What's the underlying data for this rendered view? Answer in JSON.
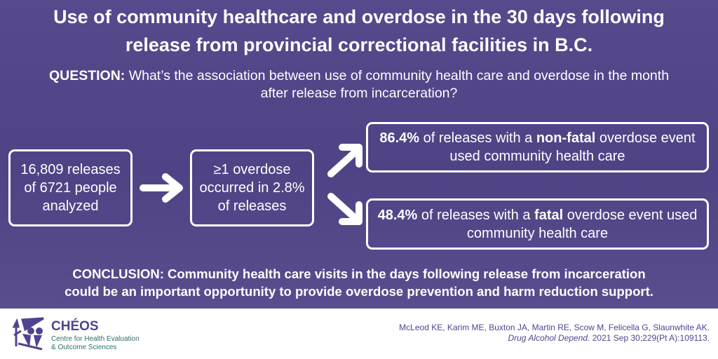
{
  "title": {
    "line1": "Use of community healthcare and overdose in the 30 days following",
    "line2": "release from provincial correctional facilities in B.C."
  },
  "question": {
    "label": "QUESTION:",
    "text": "What’s the association between use of community health care and overdose in the month after release from incarceration?"
  },
  "flow": {
    "box1": "16,809 releases of 6721 people analyzed",
    "box2": "≥1 overdose occurred in 2.8% of releases",
    "box3": {
      "pct": "86.4%",
      "a": " of releases with a ",
      "b": "non-fatal",
      "c": " overdose event used community health care"
    },
    "box4": {
      "pct": "48.4%",
      "a": " of releases with a ",
      "b": "fatal",
      "c": " overdose event used community health care"
    }
  },
  "conclusion": {
    "line1": "CONCLUSION: Community health care visits in the days following release from incarceration",
    "line2": "could be an important opportunity to provide overdose prevention and harm reduction support."
  },
  "footer": {
    "logo_name": "CHÉOS",
    "logo_sub1": "Centre for Health Evaluation",
    "logo_sub2": "& Outcome Sciences",
    "citation_authors": "McLeod KE, Karim ME, Buxton JA, Martin RE, Scow M, Felicella G, Slaunwhite AK.",
    "citation_journal": "Drug Alcohol Depend.",
    "citation_details": " 2021 Sep 30;229(Pt A):109113."
  },
  "colors": {
    "background": "#54478a",
    "logo_purple": "#4f4490",
    "logo_teal": "#2f6b6b"
  }
}
